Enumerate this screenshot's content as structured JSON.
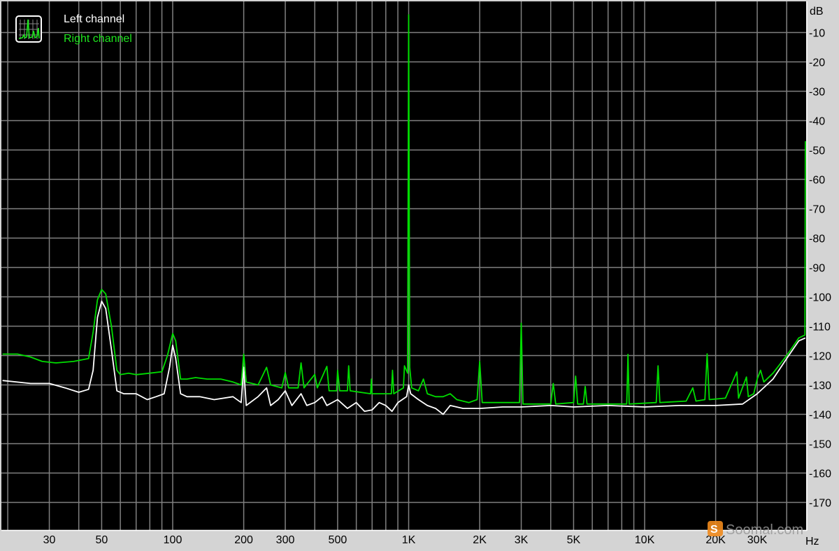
{
  "chart_data": {
    "type": "line",
    "x_scale": "log",
    "xlabel": "Hz",
    "ylabel": "dB",
    "xlim": [
      19,
      48000
    ],
    "ylim": [
      -180,
      0
    ],
    "grid": true,
    "legend_position": "top-left",
    "background": "#000000",
    "grid_color": "#808080",
    "x_ticks": [
      {
        "value": 30,
        "label": "30"
      },
      {
        "value": 50,
        "label": "50"
      },
      {
        "value": 100,
        "label": "100"
      },
      {
        "value": 200,
        "label": "200"
      },
      {
        "value": 300,
        "label": "300"
      },
      {
        "value": 500,
        "label": "500"
      },
      {
        "value": 1000,
        "label": "1K"
      },
      {
        "value": 2000,
        "label": "2K"
      },
      {
        "value": 3000,
        "label": "3K"
      },
      {
        "value": 5000,
        "label": "5K"
      },
      {
        "value": 10000,
        "label": "10K"
      },
      {
        "value": 20000,
        "label": "20K"
      },
      {
        "value": 30000,
        "label": "30K"
      }
    ],
    "x_gridlines": [
      20,
      30,
      40,
      50,
      60,
      70,
      80,
      90,
      100,
      200,
      300,
      400,
      500,
      600,
      700,
      800,
      900,
      1000,
      2000,
      3000,
      4000,
      5000,
      6000,
      7000,
      8000,
      9000,
      10000,
      20000,
      30000,
      40000
    ],
    "y_ticks": [
      {
        "value": -10,
        "label": "-10"
      },
      {
        "value": -20,
        "label": "-20"
      },
      {
        "value": -30,
        "label": "-30"
      },
      {
        "value": -40,
        "label": "-40"
      },
      {
        "value": -50,
        "label": "-50"
      },
      {
        "value": -60,
        "label": "-60"
      },
      {
        "value": -70,
        "label": "-70"
      },
      {
        "value": -80,
        "label": "-80"
      },
      {
        "value": -90,
        "label": "-90"
      },
      {
        "value": -100,
        "label": "-100"
      },
      {
        "value": -110,
        "label": "-110"
      },
      {
        "value": -120,
        "label": "-120"
      },
      {
        "value": -130,
        "label": "-130"
      },
      {
        "value": -140,
        "label": "-140"
      },
      {
        "value": -150,
        "label": "-150"
      },
      {
        "value": -160,
        "label": "-160"
      },
      {
        "value": -170,
        "label": "-170"
      }
    ],
    "series": [
      {
        "name": "Left channel",
        "color": "#ffffff",
        "points": [
          [
            19,
            -128.5
          ],
          [
            25,
            -129.5
          ],
          [
            30,
            -129.5
          ],
          [
            35,
            -131
          ],
          [
            40,
            -132.5
          ],
          [
            44,
            -131.5
          ],
          [
            46,
            -125
          ],
          [
            48,
            -107
          ],
          [
            50,
            -101.5
          ],
          [
            52,
            -104
          ],
          [
            55,
            -118
          ],
          [
            58,
            -132
          ],
          [
            62,
            -133
          ],
          [
            70,
            -133
          ],
          [
            78,
            -135
          ],
          [
            85,
            -134
          ],
          [
            92,
            -133
          ],
          [
            97,
            -124
          ],
          [
            100,
            -116.5
          ],
          [
            103,
            -121
          ],
          [
            108,
            -133
          ],
          [
            115,
            -134
          ],
          [
            130,
            -134
          ],
          [
            150,
            -135
          ],
          [
            180,
            -134
          ],
          [
            195,
            -136
          ],
          [
            200,
            -124
          ],
          [
            205,
            -137
          ],
          [
            230,
            -134
          ],
          [
            250,
            -131
          ],
          [
            260,
            -137
          ],
          [
            280,
            -135
          ],
          [
            300,
            -132
          ],
          [
            320,
            -137
          ],
          [
            350,
            -133
          ],
          [
            370,
            -137
          ],
          [
            400,
            -136
          ],
          [
            430,
            -134
          ],
          [
            450,
            -137
          ],
          [
            500,
            -135
          ],
          [
            550,
            -138
          ],
          [
            600,
            -136
          ],
          [
            650,
            -139
          ],
          [
            700,
            -138.5
          ],
          [
            750,
            -136
          ],
          [
            800,
            -137
          ],
          [
            850,
            -139
          ],
          [
            900,
            -136
          ],
          [
            980,
            -134
          ],
          [
            1000,
            -130
          ],
          [
            1020,
            -133
          ],
          [
            1100,
            -135
          ],
          [
            1200,
            -137
          ],
          [
            1300,
            -138
          ],
          [
            1400,
            -140
          ],
          [
            1500,
            -137
          ],
          [
            1700,
            -138
          ],
          [
            2000,
            -138
          ],
          [
            2500,
            -137.5
          ],
          [
            3000,
            -137.5
          ],
          [
            4000,
            -137
          ],
          [
            5000,
            -137.5
          ],
          [
            7000,
            -137
          ],
          [
            10000,
            -137.5
          ],
          [
            14000,
            -137
          ],
          [
            20000,
            -137
          ],
          [
            26000,
            -136.5
          ],
          [
            30000,
            -133
          ],
          [
            35000,
            -128
          ],
          [
            40000,
            -121
          ],
          [
            45000,
            -115
          ],
          [
            48000,
            -114
          ]
        ]
      },
      {
        "name": "Right channel",
        "color": "#00dd00",
        "points": [
          [
            19,
            -119.5
          ],
          [
            22,
            -119.5
          ],
          [
            25,
            -120.5
          ],
          [
            28,
            -122
          ],
          [
            32,
            -122.5
          ],
          [
            38,
            -122
          ],
          [
            44,
            -121
          ],
          [
            46,
            -112
          ],
          [
            48,
            -101
          ],
          [
            50,
            -97.5
          ],
          [
            52,
            -99
          ],
          [
            55,
            -110
          ],
          [
            58,
            -125
          ],
          [
            60,
            -126.5
          ],
          [
            65,
            -126
          ],
          [
            70,
            -126.5
          ],
          [
            80,
            -126
          ],
          [
            90,
            -125.5
          ],
          [
            95,
            -120
          ],
          [
            100,
            -112.5
          ],
          [
            103,
            -115
          ],
          [
            108,
            -128
          ],
          [
            115,
            -128
          ],
          [
            125,
            -127.5
          ],
          [
            140,
            -128
          ],
          [
            160,
            -128
          ],
          [
            180,
            -129
          ],
          [
            195,
            -130
          ],
          [
            200,
            -119.5
          ],
          [
            205,
            -129
          ],
          [
            230,
            -130
          ],
          [
            250,
            -124
          ],
          [
            260,
            -130
          ],
          [
            290,
            -131
          ],
          [
            300,
            -125.8
          ],
          [
            310,
            -131
          ],
          [
            340,
            -131
          ],
          [
            350,
            -122.5
          ],
          [
            360,
            -131
          ],
          [
            400,
            -126.4
          ],
          [
            410,
            -131
          ],
          [
            450,
            -123.7
          ],
          [
            460,
            -132
          ],
          [
            495,
            -132
          ],
          [
            500,
            -125
          ],
          [
            510,
            -132
          ],
          [
            550,
            -132
          ],
          [
            557,
            -123.5
          ],
          [
            565,
            -132
          ],
          [
            690,
            -133
          ],
          [
            695,
            -128
          ],
          [
            700,
            -133
          ],
          [
            845,
            -133
          ],
          [
            854,
            -125
          ],
          [
            865,
            -133
          ],
          [
            950,
            -131
          ],
          [
            960,
            -123.5
          ],
          [
            990,
            -126
          ],
          [
            1000,
            -4
          ],
          [
            1010,
            -124
          ],
          [
            1030,
            -131
          ],
          [
            1100,
            -132
          ],
          [
            1155,
            -128
          ],
          [
            1200,
            -133
          ],
          [
            1300,
            -134
          ],
          [
            1400,
            -134
          ],
          [
            1500,
            -133
          ],
          [
            1600,
            -135
          ],
          [
            1800,
            -136
          ],
          [
            1950,
            -135
          ],
          [
            2000,
            -122
          ],
          [
            2050,
            -136
          ],
          [
            2500,
            -136
          ],
          [
            2950,
            -136
          ],
          [
            3000,
            -109
          ],
          [
            3050,
            -136.5
          ],
          [
            4000,
            -136.5
          ],
          [
            4100,
            -129.5
          ],
          [
            4200,
            -136.5
          ],
          [
            5000,
            -136
          ],
          [
            5100,
            -127
          ],
          [
            5200,
            -136.5
          ],
          [
            5500,
            -136.5
          ],
          [
            5600,
            -130.5
          ],
          [
            5700,
            -136.5
          ],
          [
            7000,
            -136.5
          ],
          [
            8400,
            -136.5
          ],
          [
            8500,
            -119.6
          ],
          [
            8600,
            -136.5
          ],
          [
            11200,
            -136
          ],
          [
            11400,
            -123.5
          ],
          [
            11600,
            -136
          ],
          [
            15000,
            -135.5
          ],
          [
            16000,
            -131
          ],
          [
            16500,
            -135.5
          ],
          [
            18000,
            -135
          ],
          [
            18400,
            -119.4
          ],
          [
            18800,
            -135
          ],
          [
            22000,
            -134.5
          ],
          [
            24600,
            -125.6
          ],
          [
            25000,
            -134.5
          ],
          [
            27000,
            -127.3
          ],
          [
            27500,
            -134
          ],
          [
            29000,
            -133
          ],
          [
            30000,
            -128
          ],
          [
            31000,
            -125
          ],
          [
            32000,
            -129
          ],
          [
            35000,
            -126
          ],
          [
            40000,
            -120
          ],
          [
            45000,
            -114
          ],
          [
            47800,
            -113
          ],
          [
            48000,
            -47
          ]
        ]
      }
    ]
  },
  "legend": {
    "icon": "spectrum-analyzer-icon",
    "items": [
      "Left channel",
      "Right channel"
    ]
  },
  "axis": {
    "y_unit": "dB",
    "x_unit": "Hz"
  },
  "watermark": {
    "text": "Soomal.com",
    "icon_color": "#f08a1c"
  }
}
